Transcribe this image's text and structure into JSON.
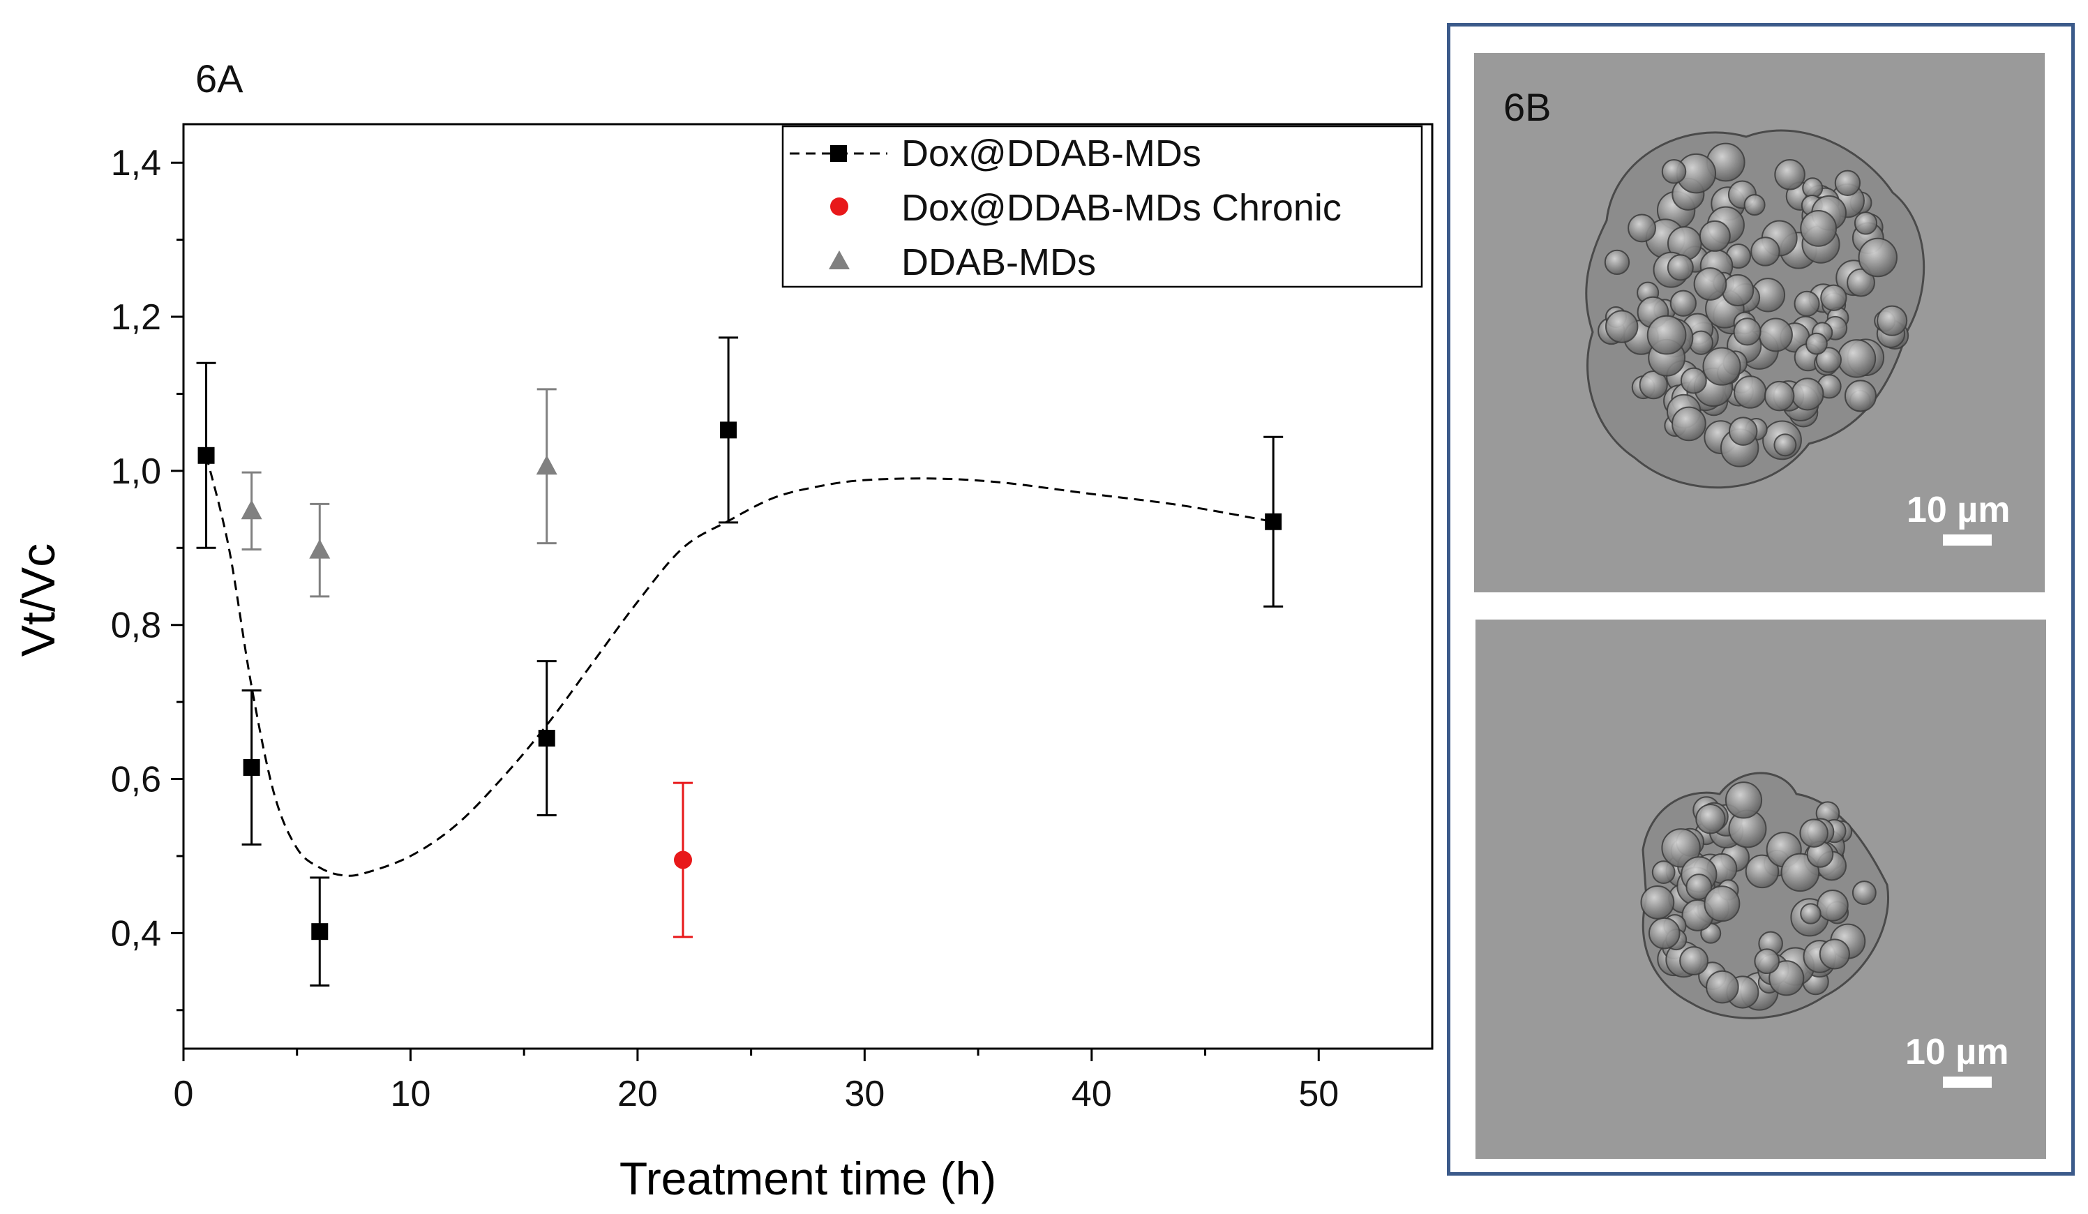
{
  "figure": {
    "panel_a_label": "6A",
    "panel_b_label": "6B",
    "scale_bar_top": "10 µm",
    "scale_bar_bottom": "10 µm"
  },
  "colors": {
    "series1": "#000000",
    "series2": "#e8181a",
    "series3": "#808080",
    "frame": "#3b5a8a",
    "micrograph_bg": "#9a9a9a"
  },
  "chart_data": {
    "type": "scatter",
    "title": "",
    "xlabel": "Treatment time (h)",
    "ylabel": "Vt/Vc",
    "xlim": [
      0,
      55
    ],
    "ylim": [
      0.25,
      1.45
    ],
    "xticks": [
      0,
      10,
      20,
      30,
      40,
      50
    ],
    "xtick_labels": [
      "0",
      "10",
      "20",
      "30",
      "40",
      "50"
    ],
    "yticks": [
      0.4,
      0.6,
      0.8,
      1.0,
      1.2,
      1.4
    ],
    "ytick_labels": [
      "0,4",
      "0,6",
      "0,8",
      "1,0",
      "1,2",
      "1,4"
    ],
    "legend_position": "top-right",
    "series": [
      {
        "name": "Dox@DDAB-MDs",
        "marker": "square",
        "color": "#000000",
        "x": [
          1,
          3,
          6,
          16,
          24,
          48
        ],
        "y": [
          1.02,
          0.615,
          0.402,
          0.653,
          1.053,
          0.934
        ],
        "err": [
          0.12,
          0.1,
          0.07,
          0.1,
          0.12,
          0.11
        ],
        "fit_line": {
          "style": "dashed",
          "x": [
            1,
            2,
            3,
            4,
            5,
            6,
            7,
            8,
            10,
            12,
            14,
            16,
            18,
            20,
            22,
            24,
            26,
            28,
            30,
            33,
            36,
            40,
            44,
            48
          ],
          "y": [
            1.02,
            0.9,
            0.72,
            0.58,
            0.51,
            0.485,
            0.475,
            0.478,
            0.5,
            0.54,
            0.6,
            0.67,
            0.75,
            0.83,
            0.9,
            0.935,
            0.965,
            0.98,
            0.988,
            0.99,
            0.985,
            0.97,
            0.955,
            0.934
          ]
        }
      },
      {
        "name": "Dox@DDAB-MDs Chronic",
        "marker": "circle",
        "color": "#e8181a",
        "x": [
          22
        ],
        "y": [
          0.495
        ],
        "err": [
          0.1
        ]
      },
      {
        "name": "DDAB-MDs",
        "marker": "triangle",
        "color": "#808080",
        "x": [
          3,
          6,
          16
        ],
        "y": [
          0.948,
          0.897,
          1.006
        ],
        "err": [
          0.05,
          0.06,
          0.1
        ]
      }
    ]
  }
}
